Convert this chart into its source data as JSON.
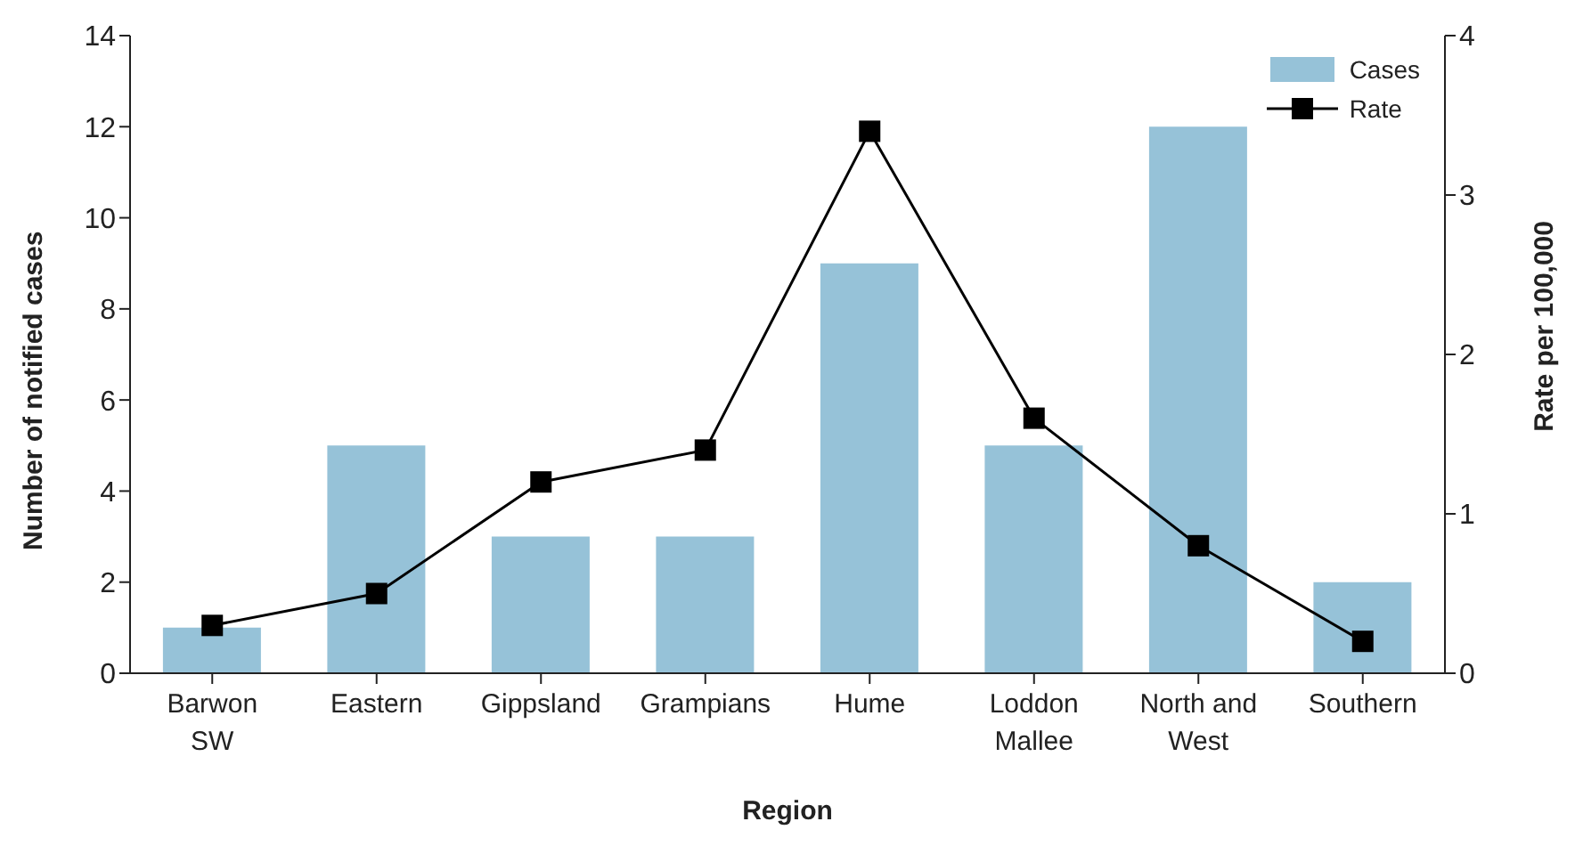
{
  "chart_data": {
    "type": "bar",
    "xlabel": "Region",
    "ylabel": "Number of notified cases",
    "y2label": "Rate per 100,000",
    "categories": [
      "Barwon SW",
      "Eastern",
      "Gippsland",
      "Grampians",
      "Hume",
      "Loddon Mallee",
      "North and West",
      "Southern"
    ],
    "series": [
      {
        "name": "Cases",
        "color": "#96c2d8",
        "values": [
          1,
          5,
          3,
          3,
          9,
          5,
          12,
          2
        ]
      },
      {
        "name": "Rate",
        "type": "line",
        "axis": "y2",
        "color": "#000000",
        "values": [
          0.3,
          0.5,
          1.2,
          1.4,
          3.4,
          1.6,
          0.8,
          0.2
        ]
      }
    ],
    "ylim": [
      0,
      14
    ],
    "yticks": [
      0,
      2,
      4,
      6,
      8,
      10,
      12,
      14
    ],
    "y2lim": [
      0,
      4
    ],
    "y2ticks": [
      0,
      1,
      2,
      3,
      4
    ],
    "grid": false,
    "legend": "top right",
    "marker": "square",
    "line_style": "solid"
  }
}
